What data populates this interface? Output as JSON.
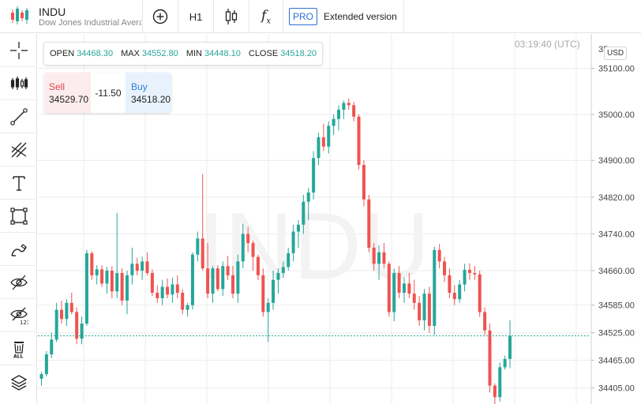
{
  "symbol": {
    "ticker": "INDU",
    "description": "Dow Jones Industrial Average"
  },
  "toolbar": {
    "timeframe": "H1",
    "function_glyph": "f",
    "function_sub": "x",
    "pro_badge": "PRO",
    "extended_label": "Extended version"
  },
  "left_tools": [
    "crosshair-icon",
    "candles-icon",
    "line-tool-icon",
    "fib-tool-icon",
    "text-tool-icon",
    "rect-tool-icon",
    "brush-icon",
    "eye-hide-icon",
    "eye-123-icon",
    "delete-all-icon",
    "layers-icon"
  ],
  "ohlc": {
    "open_label": "OPEN",
    "open": "34468.30",
    "max_label": "MAX",
    "max": "34552.80",
    "min_label": "MIN",
    "min": "34448.10",
    "close_label": "CLOSE",
    "close": "34518.20"
  },
  "trade": {
    "sell_label": "Sell",
    "sell_price": "34529.70",
    "spread": "-11.50",
    "buy_label": "Buy",
    "buy_price": "34518.20"
  },
  "clock": "03:19:40 (UTC)",
  "currency": "USD",
  "colors": {
    "up": "#26a69a",
    "down": "#ef5350",
    "grid": "#ececec",
    "axis_text": "#444",
    "price_line": "#26a69a"
  },
  "chart_data": {
    "type": "candlestick",
    "watermark": "INDU",
    "ylim": [
      34370,
      35175
    ],
    "y_ticks": [
      34405,
      34465,
      34525,
      34585,
      34660,
      34740,
      34820,
      34900,
      35000,
      35100
    ],
    "y_tick_labels": [
      "34405.00",
      "34465.00",
      "34525.00",
      "34585.00",
      "34660.00",
      "34740.00",
      "34820.00",
      "34900.00",
      "35000.00",
      "35100.00"
    ],
    "top_tick_label_partial": "35",
    "current_price": 34518.2,
    "candles": [
      [
        34425,
        34440,
        34410,
        34435
      ],
      [
        34435,
        34485,
        34430,
        34478
      ],
      [
        34478,
        34525,
        34470,
        34510
      ],
      [
        34510,
        34590,
        34505,
        34575
      ],
      [
        34575,
        34595,
        34545,
        34555
      ],
      [
        34555,
        34598,
        34540,
        34590
      ],
      [
        34590,
        34612,
        34565,
        34570
      ],
      [
        34570,
        34580,
        34500,
        34512
      ],
      [
        34512,
        34560,
        34500,
        34545
      ],
      [
        34545,
        34705,
        34540,
        34698
      ],
      [
        34698,
        34702,
        34640,
        34650
      ],
      [
        34650,
        34672,
        34630,
        34663
      ],
      [
        34663,
        34672,
        34625,
        34632
      ],
      [
        34632,
        34668,
        34610,
        34660
      ],
      [
        34660,
        34670,
        34600,
        34615
      ],
      [
        34615,
        34785,
        34600,
        34655
      ],
      [
        34655,
        34665,
        34585,
        34595
      ],
      [
        34595,
        34660,
        34565,
        34650
      ],
      [
        34650,
        34710,
        34630,
        34675
      ],
      [
        34675,
        34688,
        34650,
        34660
      ],
      [
        34660,
        34690,
        34640,
        34680
      ],
      [
        34680,
        34700,
        34650,
        34655
      ],
      [
        34655,
        34663,
        34605,
        34612
      ],
      [
        34612,
        34628,
        34590,
        34600
      ],
      [
        34600,
        34640,
        34585,
        34625
      ],
      [
        34625,
        34643,
        34600,
        34608
      ],
      [
        34608,
        34645,
        34590,
        34630
      ],
      [
        34630,
        34650,
        34600,
        34612
      ],
      [
        34612,
        34620,
        34565,
        34575
      ],
      [
        34575,
        34590,
        34560,
        34585
      ],
      [
        34585,
        34700,
        34575,
        34695
      ],
      [
        34695,
        34745,
        34680,
        34730
      ],
      [
        34730,
        34870,
        34660,
        34665
      ],
      [
        34665,
        34720,
        34600,
        34610
      ],
      [
        34610,
        34670,
        34590,
        34665
      ],
      [
        34665,
        34672,
        34615,
        34620
      ],
      [
        34620,
        34680,
        34605,
        34670
      ],
      [
        34670,
        34692,
        34640,
        34650
      ],
      [
        34650,
        34670,
        34600,
        34610
      ],
      [
        34610,
        34695,
        34590,
        34680
      ],
      [
        34680,
        34762,
        34665,
        34740
      ],
      [
        34740,
        34755,
        34700,
        34720
      ],
      [
        34720,
        34725,
        34660,
        34690
      ],
      [
        34690,
        34695,
        34640,
        34650
      ],
      [
        34650,
        34665,
        34560,
        34570
      ],
      [
        34570,
        34600,
        34505,
        34590
      ],
      [
        34590,
        34660,
        34575,
        34640
      ],
      [
        34640,
        34665,
        34610,
        34655
      ],
      [
        34655,
        34680,
        34645,
        34668
      ],
      [
        34668,
        34710,
        34660,
        34698
      ],
      [
        34698,
        34760,
        34680,
        34745
      ],
      [
        34745,
        34770,
        34710,
        34760
      ],
      [
        34760,
        34825,
        34740,
        34810
      ],
      [
        34810,
        34840,
        34770,
        34830
      ],
      [
        34830,
        34920,
        34815,
        34905
      ],
      [
        34905,
        34960,
        34890,
        34950
      ],
      [
        34950,
        34980,
        34920,
        34930
      ],
      [
        34930,
        34985,
        34915,
        34975
      ],
      [
        34975,
        35000,
        34955,
        34990
      ],
      [
        34990,
        35020,
        34965,
        35010
      ],
      [
        35010,
        35030,
        34990,
        35025
      ],
      [
        35025,
        35035,
        35010,
        35020
      ],
      [
        35020,
        35027,
        34985,
        34995
      ],
      [
        34995,
        35000,
        34880,
        34890
      ],
      [
        34890,
        34900,
        34800,
        34815
      ],
      [
        34815,
        34825,
        34700,
        34710
      ],
      [
        34710,
        34720,
        34660,
        34675
      ],
      [
        34675,
        34715,
        34640,
        34700
      ],
      [
        34700,
        34720,
        34665,
        34675
      ],
      [
        34675,
        34680,
        34560,
        34570
      ],
      [
        34570,
        34665,
        34550,
        34655
      ],
      [
        34655,
        34670,
        34600,
        34612
      ],
      [
        34612,
        34645,
        34590,
        34632
      ],
      [
        34632,
        34655,
        34600,
        34610
      ],
      [
        34610,
        34640,
        34575,
        34590
      ],
      [
        34590,
        34605,
        34540,
        34552
      ],
      [
        34552,
        34620,
        34530,
        34610
      ],
      [
        34610,
        34625,
        34525,
        34540
      ],
      [
        34540,
        34712,
        34520,
        34705
      ],
      [
        34705,
        34718,
        34665,
        34680
      ],
      [
        34680,
        34690,
        34635,
        34650
      ],
      [
        34650,
        34665,
        34600,
        34612
      ],
      [
        34612,
        34628,
        34585,
        34598
      ],
      [
        34598,
        34640,
        34590,
        34630
      ],
      [
        34630,
        34675,
        34615,
        34662
      ],
      [
        34662,
        34676,
        34640,
        34655
      ],
      [
        34655,
        34670,
        34640,
        34652
      ],
      [
        34652,
        34660,
        34560,
        34570
      ],
      [
        34570,
        34580,
        34520,
        34530
      ],
      [
        34530,
        34545,
        34395,
        34410
      ],
      [
        34410,
        34415,
        34370,
        34385
      ],
      [
        34385,
        34460,
        34375,
        34450
      ],
      [
        34450,
        34475,
        34445,
        34468
      ],
      [
        34468,
        34552,
        34448,
        34518
      ]
    ]
  }
}
